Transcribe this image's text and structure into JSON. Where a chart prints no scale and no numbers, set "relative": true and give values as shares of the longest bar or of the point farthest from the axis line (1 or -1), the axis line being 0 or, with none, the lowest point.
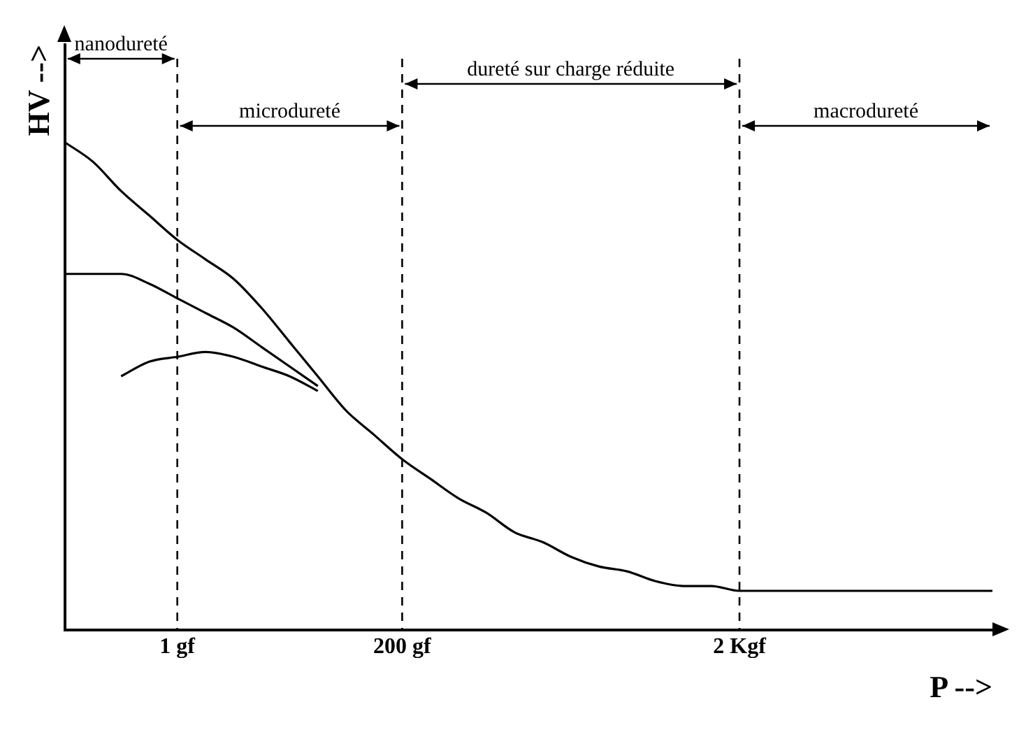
{
  "chart_data": {
    "type": "line",
    "relative": true,
    "xlabel": "P -->",
    "ylabel": "HV -->",
    "categories": [
      null,
      null,
      null,
      null,
      "1 gf",
      null,
      null,
      null,
      null,
      null,
      null,
      null,
      "200 gf",
      null,
      null,
      null,
      null,
      null,
      null,
      null,
      null,
      null,
      null,
      null,
      "2 Kgf",
      null,
      null,
      null,
      null,
      null,
      null,
      null,
      null,
      null
    ],
    "tick_labels": "x",
    "grid": false,
    "legend": false,
    "marker": "none",
    "line_style": "solid",
    "series": [
      {
        "color": "#000000",
        "values": [
          1.0,
          0.96,
          0.9,
          0.85,
          0.8,
          0.76,
          0.72,
          0.66,
          0.59,
          0.52,
          0.45,
          0.4,
          0.35,
          0.31,
          0.27,
          0.24,
          0.2,
          0.18,
          0.15,
          0.13,
          0.12,
          0.1,
          0.09,
          0.09,
          0.08,
          0.08,
          0.08,
          0.08,
          0.08,
          0.08,
          0.08,
          0.08,
          0.08,
          0.08
        ]
      },
      {
        "color": "#000000",
        "values": [
          0.73,
          0.73,
          0.73,
          0.71,
          0.68,
          0.65,
          0.62,
          0.58,
          0.54,
          0.5,
          null,
          null,
          null,
          null,
          null,
          null,
          null,
          null,
          null,
          null,
          null,
          null,
          null,
          null,
          null,
          null,
          null,
          null,
          null,
          null,
          null,
          null,
          null,
          null
        ]
      },
      {
        "color": "#000000",
        "values": [
          null,
          null,
          0.52,
          0.55,
          0.56,
          0.57,
          0.56,
          0.54,
          0.52,
          0.49,
          null,
          null,
          null,
          null,
          null,
          null,
          null,
          null,
          null,
          null,
          null,
          null,
          null,
          null,
          null,
          null,
          null,
          null,
          null,
          null,
          null,
          null,
          null,
          null
        ]
      }
    ],
    "ref_lines": [
      {
        "axis": "x",
        "value": "1 gf",
        "line_style": "dashed",
        "color": "#000000"
      },
      {
        "axis": "x",
        "value": "200 gf",
        "line_style": "dashed",
        "color": "#000000"
      },
      {
        "axis": "x",
        "value": "2 Kgf",
        "line_style": "dashed",
        "color": "#000000"
      }
    ],
    "annotations": [
      "nanodureté",
      "microdureté",
      "dureté sur charge réduite",
      "macrodureté"
    ]
  }
}
